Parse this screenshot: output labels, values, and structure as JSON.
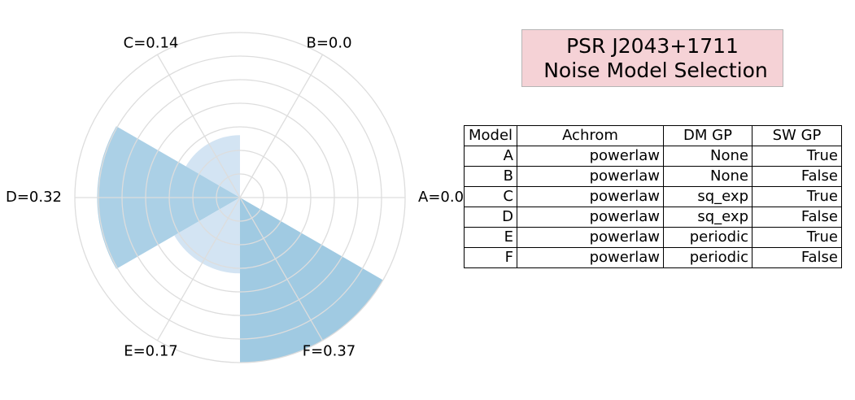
{
  "chart_data": {
    "type": "polar-bar",
    "categories": [
      "A",
      "B",
      "C",
      "D",
      "E",
      "F"
    ],
    "values": [
      0.0,
      0.0,
      0.14,
      0.32,
      0.17,
      0.37
    ],
    "labels": [
      "A=0.0",
      "B=0.0",
      "C=0.14",
      "D=0.32",
      "E=0.17",
      "F=0.37"
    ],
    "rlim": [
      0,
      0.37
    ],
    "grid": true,
    "colors": {
      "A": "#d3e4f3",
      "B": "#d3e4f3",
      "C": "#d3e4f3",
      "D": "#abd0e6",
      "E": "#d3e4f3",
      "F": "#a0cae2"
    },
    "grid_color": "#dddddd"
  },
  "title": {
    "lines": [
      "PSR J2043+1711",
      " Noise Model Selection"
    ],
    "background": "#f5d2d6"
  },
  "table": {
    "headers": [
      "Model",
      "Achrom",
      "DM GP",
      "SW GP"
    ],
    "rows": [
      [
        "A",
        "powerlaw",
        "None",
        "True"
      ],
      [
        "B",
        "powerlaw",
        "None",
        "False"
      ],
      [
        "C",
        "powerlaw",
        "sq_exp",
        "True"
      ],
      [
        "D",
        "powerlaw",
        "sq_exp",
        "False"
      ],
      [
        "E",
        "powerlaw",
        "periodic",
        "True"
      ],
      [
        "F",
        "powerlaw",
        "periodic",
        "False"
      ]
    ]
  }
}
